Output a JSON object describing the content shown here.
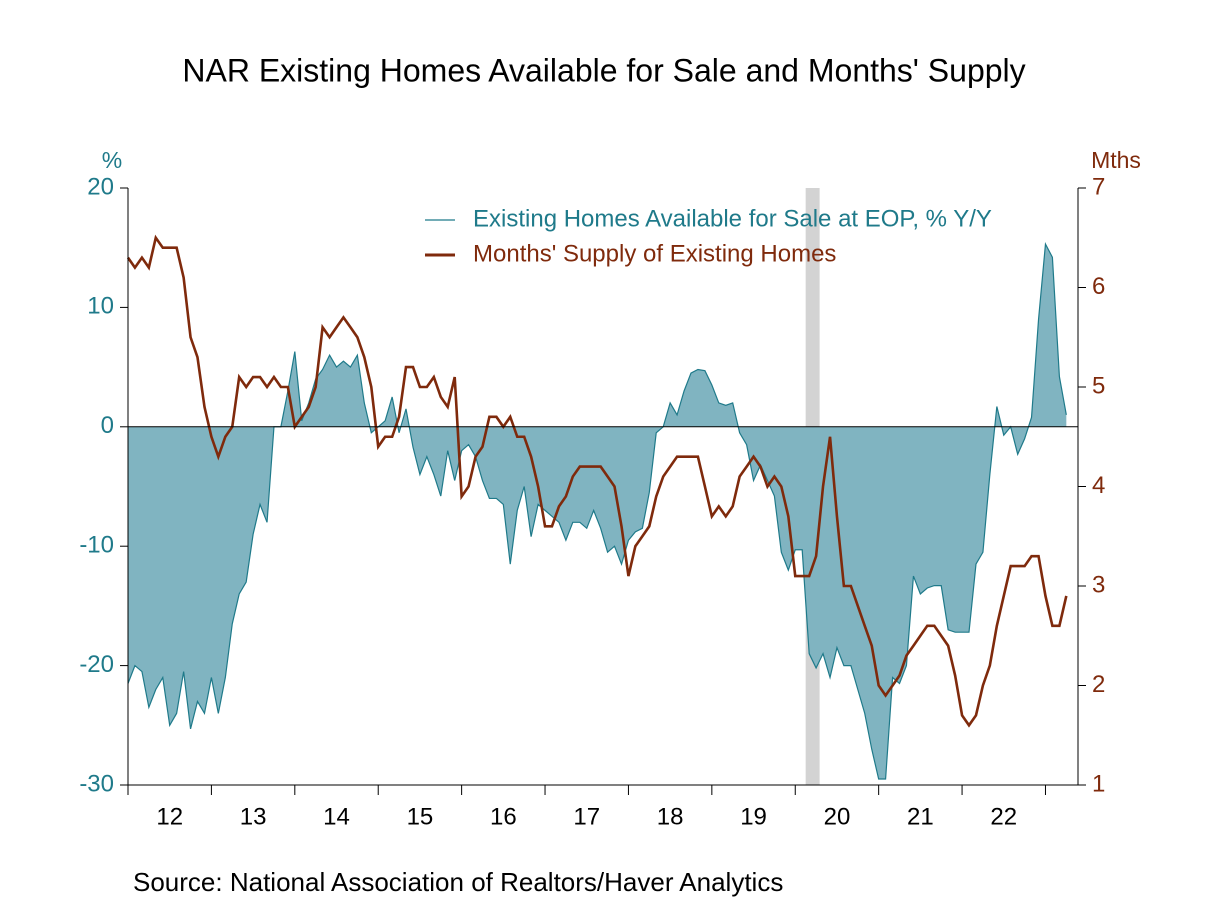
{
  "chart_data": {
    "type": "area-line",
    "title": "NAR Existing Homes Available for Sale and Months' Supply",
    "y_label": "%",
    "y2_label": "Mths",
    "source": "Source:  National Association of Realtors/Haver Analytics",
    "x": [
      2012,
      2012.083,
      2012.167,
      2012.25,
      2012.333,
      2012.417,
      2012.5,
      2012.583,
      2012.667,
      2012.75,
      2012.833,
      2012.917,
      2013,
      2013.083,
      2013.167,
      2013.25,
      2013.333,
      2013.417,
      2013.5,
      2013.583,
      2013.667,
      2013.75,
      2013.833,
      2013.917,
      2014,
      2014.083,
      2014.167,
      2014.25,
      2014.333,
      2014.417,
      2014.5,
      2014.583,
      2014.667,
      2014.75,
      2014.833,
      2014.917,
      2015,
      2015.083,
      2015.167,
      2015.25,
      2015.333,
      2015.417,
      2015.5,
      2015.583,
      2015.667,
      2015.75,
      2015.833,
      2015.917,
      2016,
      2016.083,
      2016.167,
      2016.25,
      2016.333,
      2016.417,
      2016.5,
      2016.583,
      2016.667,
      2016.75,
      2016.833,
      2016.917,
      2017,
      2017.083,
      2017.167,
      2017.25,
      2017.333,
      2017.417,
      2017.5,
      2017.583,
      2017.667,
      2017.75,
      2017.833,
      2017.917,
      2018,
      2018.083,
      2018.167,
      2018.25,
      2018.333,
      2018.417,
      2018.5,
      2018.583,
      2018.667,
      2018.75,
      2018.833,
      2018.917,
      2019,
      2019.083,
      2019.167,
      2019.25,
      2019.333,
      2019.417,
      2019.5,
      2019.583,
      2019.667,
      2019.75,
      2019.833,
      2019.917,
      2020,
      2020.083,
      2020.167,
      2020.25,
      2020.333,
      2020.417,
      2020.5,
      2020.583,
      2020.667,
      2020.75,
      2020.833,
      2020.917,
      2021,
      2021.083,
      2021.167,
      2021.25,
      2021.333,
      2021.417,
      2021.5,
      2021.583,
      2021.667,
      2021.75,
      2021.833,
      2021.917,
      2022,
      2022.083,
      2022.167,
      2022.25,
      2022.333,
      2022.417,
      2022.5,
      2022.583,
      2022.667,
      2022.75,
      2022.833,
      2022.917,
      2023,
      2023.083,
      2023.167,
      2023.25
    ],
    "series": [
      {
        "name": "Existing Homes Available for Sale at EOP, % Y/Y",
        "color": "#1f7a8a",
        "fill": "#80b4c1",
        "style": "area",
        "values": [
          -21.5,
          -20,
          -20.5,
          -23.5,
          -22,
          -21,
          -25,
          -24,
          -20.5,
          -25.3,
          -23,
          -24,
          -21,
          -24,
          -21,
          -16.5,
          -14,
          -13,
          -9,
          -6.5,
          -8,
          0,
          0,
          3,
          6.3,
          0.5,
          2,
          4,
          4.8,
          6,
          5,
          5.5,
          5,
          6,
          2,
          -0.5,
          0,
          0.5,
          2.5,
          -0.5,
          1.5,
          -1.7,
          -4,
          -2.5,
          -4,
          -5.8,
          -2,
          -4.5,
          -2,
          -1.5,
          -2.5,
          -4.5,
          -6,
          -6,
          -6.5,
          -11.5,
          -7,
          -5,
          -9.2,
          -6.5,
          -7,
          -7.5,
          -8,
          -9.5,
          -8,
          -8,
          -8.5,
          -7,
          -8.5,
          -10.5,
          -10,
          -11.5,
          -9.5,
          -8.8,
          -8.5,
          -5.5,
          -0.5,
          0,
          2,
          1,
          3,
          4.5,
          4.8,
          4.7,
          3.5,
          2,
          1.8,
          2,
          -0.5,
          -1.5,
          -4.5,
          -3.2,
          -4.5,
          -5.8,
          -10.5,
          -12,
          -10.3,
          -10.3,
          -19,
          -20.2,
          -19,
          -21,
          -18.5,
          -20,
          -20,
          -22,
          -24,
          -27,
          -29.5,
          -29.5,
          -21,
          -21.5,
          -20,
          -12.5,
          -14,
          -13.5,
          -13.3,
          -13.3,
          -17,
          -17.2,
          -17.2,
          -17.2,
          -11.5,
          -10.5,
          -4,
          1.7,
          -0.7,
          0,
          -2.3,
          -1,
          0.8,
          9,
          15.3,
          14.2,
          4.2,
          1
        ]
      },
      {
        "name": "Months' Supply of Existing Homes",
        "color": "#7f2a0c",
        "style": "line",
        "axis": "y2",
        "values": [
          6.3,
          6.2,
          6.3,
          6.2,
          6.5,
          6.4,
          6.4,
          6.4,
          6.1,
          5.5,
          5.3,
          4.8,
          4.5,
          4.3,
          4.5,
          4.6,
          5.1,
          5.0,
          5.1,
          5.1,
          5.0,
          5.1,
          5.0,
          5.0,
          4.6,
          4.7,
          4.8,
          5.0,
          5.6,
          5.5,
          5.6,
          5.7,
          5.6,
          5.5,
          5.3,
          5.0,
          4.4,
          4.5,
          4.5,
          4.7,
          5.2,
          5.2,
          5.0,
          5.0,
          5.1,
          4.9,
          4.8,
          5.1,
          3.9,
          4.0,
          4.3,
          4.4,
          4.7,
          4.7,
          4.6,
          4.7,
          4.5,
          4.5,
          4.3,
          4.0,
          3.6,
          3.6,
          3.8,
          3.9,
          4.1,
          4.2,
          4.2,
          4.2,
          4.2,
          4.1,
          4.0,
          3.6,
          3.1,
          3.4,
          3.5,
          3.6,
          3.9,
          4.1,
          4.2,
          4.3,
          4.3,
          4.3,
          4.3,
          4.0,
          3.7,
          3.8,
          3.7,
          3.8,
          4.1,
          4.2,
          4.3,
          4.2,
          4.0,
          4.1,
          4.0,
          3.7,
          3.1,
          3.1,
          3.1,
          3.3,
          4.0,
          4.5,
          3.7,
          3.0,
          3.0,
          2.8,
          2.6,
          2.4,
          2.0,
          1.9,
          2.0,
          2.1,
          2.3,
          2.4,
          2.5,
          2.6,
          2.6,
          2.5,
          2.4,
          2.1,
          1.7,
          1.6,
          1.7,
          2.0,
          2.2,
          2.6,
          2.9,
          3.2,
          3.2,
          3.2,
          3.3,
          3.3,
          2.9,
          2.6,
          2.6,
          2.9
        ]
      }
    ],
    "shading": [
      [
        2020.125,
        2020.292
      ]
    ],
    "shading_color": "#d3d3d3",
    "xlim": [
      2012,
      2023.39
    ],
    "xticks": [
      {
        "value": 2012.5,
        "label": "12"
      },
      {
        "value": 2013.5,
        "label": "13"
      },
      {
        "value": 2014.5,
        "label": "14"
      },
      {
        "value": 2015.5,
        "label": "15"
      },
      {
        "value": 2016.5,
        "label": "16"
      },
      {
        "value": 2017.5,
        "label": "17"
      },
      {
        "value": 2018.5,
        "label": "18"
      },
      {
        "value": 2019.5,
        "label": "19"
      },
      {
        "value": 2020.5,
        "label": "20"
      },
      {
        "value": 2021.5,
        "label": "21"
      },
      {
        "value": 2022.5,
        "label": "22"
      }
    ],
    "ylim": [
      -30,
      20
    ],
    "yticks": [
      -30,
      -20,
      -10,
      0,
      10,
      20
    ],
    "y2lim": [
      1,
      7
    ],
    "y2ticks": [
      1,
      2,
      3,
      4,
      5,
      6,
      7
    ],
    "legend": "upper right"
  }
}
